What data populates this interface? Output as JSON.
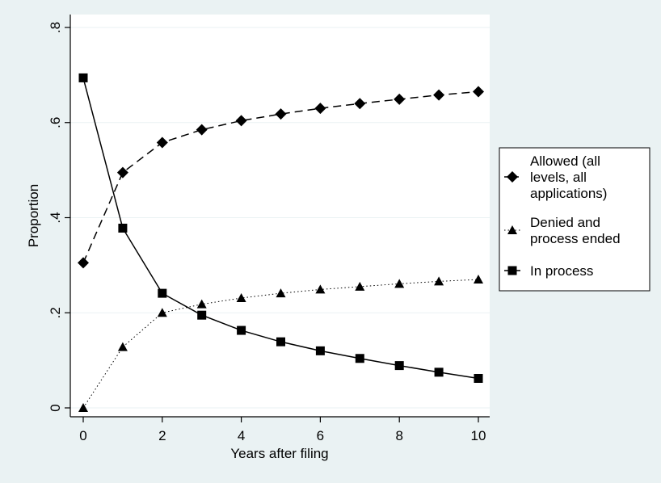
{
  "chart_data": {
    "type": "line",
    "xlabel": "Years after filing",
    "ylabel": "Proportion",
    "x": [
      0,
      1,
      2,
      3,
      4,
      5,
      6,
      7,
      8,
      9,
      10
    ],
    "xlim": [
      0,
      10
    ],
    "ylim": [
      0,
      0.8
    ],
    "xticks": [
      0,
      2,
      4,
      6,
      8,
      10
    ],
    "xtick_labels": [
      "0",
      "2",
      "4",
      "6",
      "8",
      "10"
    ],
    "yticks": [
      0,
      0.2,
      0.4,
      0.6,
      0.8
    ],
    "ytick_labels": [
      "0",
      ".2",
      ".4",
      ".6",
      ".8"
    ],
    "grid": true,
    "legend_position": "right",
    "series": [
      {
        "name": "Allowed (all levels, all applications)",
        "legend_lines": [
          "Allowed (all",
          "levels, all",
          "applications)"
        ],
        "marker": "diamond",
        "line_style": "dashed",
        "color": "#000000",
        "values": [
          0.305,
          0.495,
          0.558,
          0.585,
          0.604,
          0.618,
          0.63,
          0.64,
          0.649,
          0.658,
          0.665
        ]
      },
      {
        "name": "Denied and process ended",
        "legend_lines": [
          "Denied and",
          "process ended"
        ],
        "marker": "triangle",
        "line_style": "dotted",
        "color": "#000000",
        "values": [
          0.0,
          0.128,
          0.2,
          0.218,
          0.231,
          0.241,
          0.249,
          0.255,
          0.261,
          0.266,
          0.27
        ]
      },
      {
        "name": "In process",
        "legend_lines": [
          "In process"
        ],
        "marker": "square",
        "line_style": "solid",
        "color": "#000000",
        "values": [
          0.694,
          0.378,
          0.241,
          0.195,
          0.163,
          0.139,
          0.12,
          0.104,
          0.089,
          0.075,
          0.062
        ]
      }
    ]
  },
  "colors": {
    "background": "#eaf2f3",
    "plot_background": "#ffffff",
    "grid": "#eaf2f3",
    "ink": "#000000"
  }
}
